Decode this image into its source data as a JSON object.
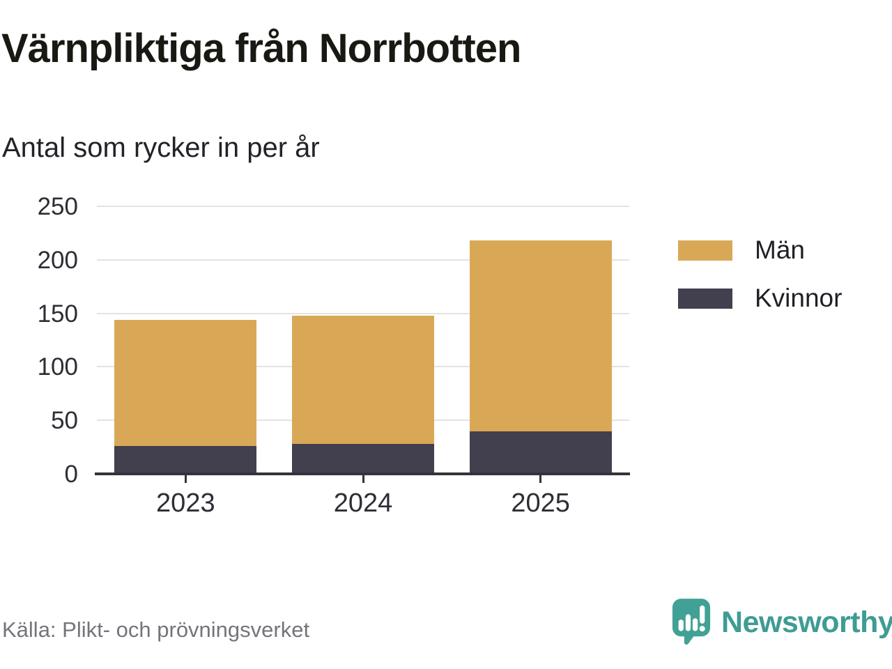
{
  "title": "Värnpliktiga från Norrbotten",
  "subtitle": "Antal som rycker in per år",
  "source": "Källa: Plikt- och prövningsverket",
  "brand": {
    "name": "Newsworthy",
    "color": "#3E9C94",
    "icon": "newsworthy-logo-icon"
  },
  "colors": {
    "men": "#D9A857",
    "women": "#42404E",
    "gridline": "#E3E3E3",
    "axis": "#34333B",
    "title_text": "#191913",
    "muted_text": "#74747C",
    "brand_teal": "#3E9C94"
  },
  "legend": {
    "items": [
      {
        "label": "Män",
        "color": "#D9A857"
      },
      {
        "label": "Kvinnor",
        "color": "#42404E"
      }
    ]
  },
  "chart_data": {
    "type": "bar",
    "stacked": true,
    "title": "Värnpliktiga från Norrbotten",
    "subtitle": "Antal som rycker in per år",
    "categories": [
      "2023",
      "2024",
      "2025"
    ],
    "series": [
      {
        "name": "Kvinnor",
        "color": "#42404E",
        "values": [
          26,
          28,
          40
        ]
      },
      {
        "name": "Män",
        "color": "#D9A857",
        "values": [
          118,
          120,
          178
        ]
      }
    ],
    "stack_totals": [
      144,
      148,
      218
    ],
    "xlabel": "",
    "ylabel": "",
    "ylim": [
      0,
      250
    ],
    "yticks": [
      0,
      50,
      100,
      150,
      200,
      250
    ],
    "grid": true,
    "legend_position": "right",
    "source": "Källa: Plikt- och prövningsverket"
  }
}
